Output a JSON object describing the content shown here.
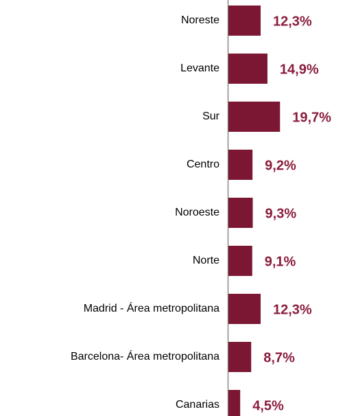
{
  "chart_data": {
    "type": "bar",
    "orientation": "horizontal",
    "categories": [
      "Noreste",
      "Levante",
      "Sur",
      "Centro",
      "Noroeste",
      "Norte",
      "Madrid - Área metropolitana",
      "Barcelona- Área metropolitana",
      "Canarias"
    ],
    "values": [
      12.3,
      14.9,
      19.7,
      9.2,
      9.3,
      9.1,
      12.3,
      8.7,
      4.5
    ],
    "value_labels": [
      "12,3%",
      "14,9%",
      "19,7%",
      "9,2%",
      "9,3%",
      "9,1%",
      "12,3%",
      "8,7%",
      "4,5%"
    ],
    "color": "#7b1733"
  }
}
